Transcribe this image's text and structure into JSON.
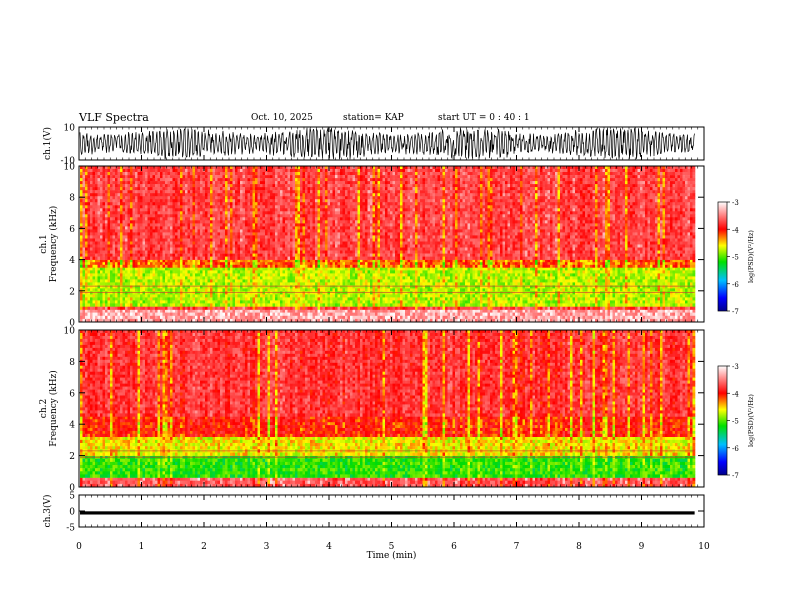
{
  "header": {
    "title": "VLF Spectra",
    "date": "Oct. 10, 2025",
    "station": "station= KAP",
    "start_time": "start  UT =   0 : 40 : 1"
  },
  "chart_data": [
    {
      "type": "line",
      "id": "ch1-waveform",
      "ylabel": "ch.1(V)",
      "ylim": [
        -10,
        10
      ],
      "yticks": [
        -10,
        10
      ],
      "xlim": [
        0,
        10
      ],
      "data_end_min": 9.85,
      "description_of_values": "dense waveform oscillating roughly between -8 and 8 V across 0 to 9.85 min"
    },
    {
      "type": "heatmap",
      "id": "ch1-spectrogram",
      "ylabel": "ch.1 Frequency (kHz)",
      "ylim": [
        0,
        10
      ],
      "yticks": [
        0,
        2,
        4,
        6,
        8,
        10
      ],
      "xlim": [
        0,
        10
      ],
      "data_end_min": 9.85,
      "bands": [
        {
          "from_khz": 0.0,
          "to_khz": 0.8,
          "level": -3.0
        },
        {
          "from_khz": 0.8,
          "to_khz": 1.0,
          "level": -3.6
        },
        {
          "from_khz": 1.0,
          "to_khz": 3.5,
          "level": -4.8
        },
        {
          "from_khz": 3.5,
          "to_khz": 4.0,
          "level": -4.2
        },
        {
          "from_khz": 4.0,
          "to_khz": 10.0,
          "level": -3.6
        }
      ],
      "colorbar": {
        "label": "log(PSD)(V²/Hz)",
        "range": [
          -7,
          -3
        ],
        "ticks": [
          "-3",
          "-4",
          "-5",
          "-6",
          "-7"
        ]
      }
    },
    {
      "type": "heatmap",
      "id": "ch2-spectrogram",
      "ylabel": "ch.2 Frequency (kHz)",
      "ylim": [
        0,
        10
      ],
      "yticks": [
        0,
        2,
        4,
        6,
        8,
        10
      ],
      "xlim": [
        0,
        10
      ],
      "data_end_min": 9.85,
      "bands": [
        {
          "from_khz": 0.0,
          "to_khz": 0.6,
          "level": -3.5
        },
        {
          "from_khz": 0.6,
          "to_khz": 2.0,
          "level": -5.2
        },
        {
          "from_khz": 2.0,
          "to_khz": 3.2,
          "level": -4.6
        },
        {
          "from_khz": 3.2,
          "to_khz": 4.5,
          "level": -4.0
        },
        {
          "from_khz": 4.5,
          "to_khz": 10.0,
          "level": -3.7
        }
      ],
      "colorbar": {
        "label": "log(PSD)(V²/Hz)",
        "range": [
          -7,
          -3
        ],
        "ticks": [
          "-3",
          "-4",
          "-5",
          "-6",
          "-7"
        ]
      }
    },
    {
      "type": "line",
      "id": "ch3-waveform",
      "ylabel": "ch.3(V)",
      "ylim": [
        -5,
        5
      ],
      "yticks": [
        -5,
        0,
        5
      ],
      "xlim": [
        0,
        10
      ],
      "data_end_min": 9.85,
      "level_center": -0.6,
      "level_halfwidth": 0.5,
      "description_of_values": "near-constant band around -0.6 V"
    }
  ],
  "xaxis": {
    "label": "Time  (min)",
    "ticks": [
      "0",
      "1",
      "2",
      "3",
      "4",
      "5",
      "6",
      "7",
      "8",
      "9",
      "10"
    ]
  }
}
